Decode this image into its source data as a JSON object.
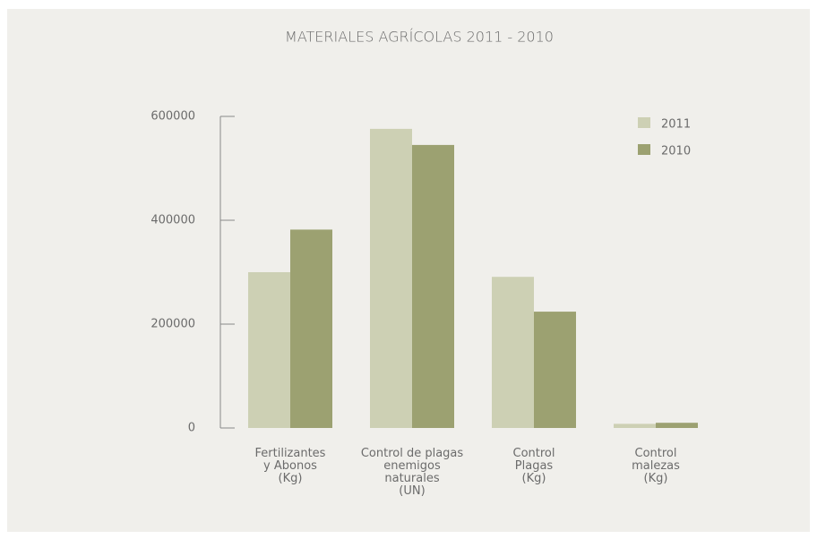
{
  "chart_data": {
    "type": "bar",
    "title": "MATERIALES AGRÍCOLAS 2011 - 2010",
    "categories": [
      "Fertilizantes\ny Abonos\n(Kg)",
      "Control de plagas\nenemigos\nnaturales\n(UN)",
      "Control\nPlagas\n(Kg)",
      "Control\nmalezas\n(Kg)"
    ],
    "series": [
      {
        "name": "2011",
        "color": "#cdd0b4",
        "values": [
          300000,
          576000,
          291000,
          8000
        ]
      },
      {
        "name": "2010",
        "color": "#9ca171",
        "values": [
          382000,
          545000,
          224000,
          10000
        ]
      }
    ],
    "ylim": [
      0,
      600000
    ],
    "yticks": [
      0,
      200000,
      400000,
      600000
    ],
    "grid": false,
    "legend": "top-right"
  }
}
